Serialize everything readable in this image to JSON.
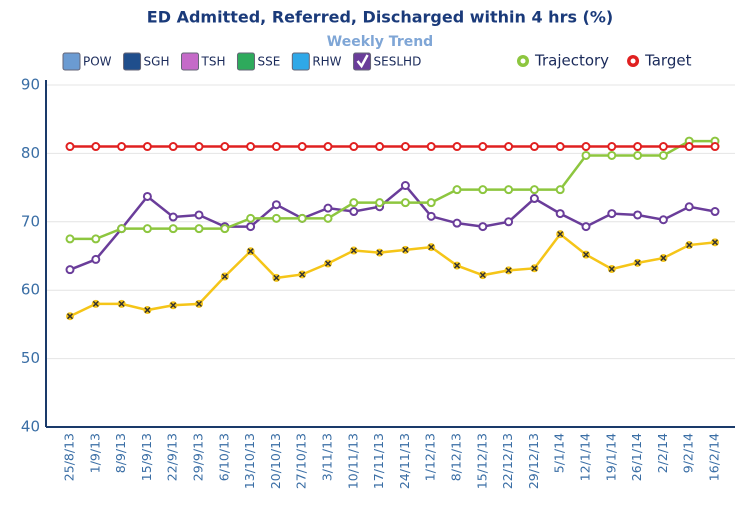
{
  "chart_data": {
    "type": "line",
    "title": "ED Admitted, Referred, Discharged within 4 hrs (%)",
    "subtitle": "Weekly Trend",
    "categories": [
      "25/8/13",
      "1/9/13",
      "8/9/13",
      "15/9/13",
      "22/9/13",
      "29/9/13",
      "6/10/13",
      "13/10/13",
      "20/10/13",
      "27/10/13",
      "3/11/13",
      "10/11/13",
      "17/11/13",
      "24/11/13",
      "1/12/13",
      "8/12/13",
      "15/12/13",
      "22/12/13",
      "29/12/13",
      "5/1/14",
      "12/1/14",
      "19/1/14",
      "26/1/14",
      "2/2/14",
      "9/2/14",
      "16/2/14"
    ],
    "legend_boxes": [
      {
        "name": "POW",
        "color": "#6b9bd2"
      },
      {
        "name": "SGH",
        "color": "#1f4e8c"
      },
      {
        "name": "TSH",
        "color": "#c56ac8"
      },
      {
        "name": "SSE",
        "color": "#2eaa5c"
      },
      {
        "name": "RHW",
        "color": "#2fa8e8"
      }
    ],
    "series": [
      {
        "name": "SESLHD",
        "color": "#6a3d9a",
        "marker": "circle",
        "legend": "box",
        "values": [
          63,
          64.5,
          69,
          73.7,
          70.7,
          71,
          69.3,
          69.3,
          72.5,
          70.5,
          72,
          71.5,
          72.2,
          75.3,
          70.8,
          69.8,
          69.3,
          70,
          73.4,
          71.2,
          69.3,
          71.2,
          71,
          70.3,
          72.2,
          71.5
        ]
      },
      {
        "name": "Trajectory",
        "color": "#8dc63f",
        "marker": "circle",
        "legend": "circle",
        "values": [
          67.5,
          67.5,
          69,
          69,
          69,
          69,
          69,
          70.5,
          70.5,
          70.5,
          70.5,
          72.8,
          72.8,
          72.8,
          72.8,
          74.7,
          74.7,
          74.7,
          74.7,
          74.7,
          79.7,
          79.7,
          79.7,
          79.7,
          81.8,
          81.8
        ]
      },
      {
        "name": "Target",
        "color": "#e02020",
        "marker": "circle",
        "legend": "circle",
        "values": [
          81,
          81,
          81,
          81,
          81,
          81,
          81,
          81,
          81,
          81,
          81,
          81,
          81,
          81,
          81,
          81,
          81,
          81,
          81,
          81,
          81,
          81,
          81,
          81,
          81,
          81
        ]
      },
      {
        "color": "#f5c518",
        "marker": "cross",
        "values": [
          56.2,
          58,
          58,
          57.1,
          57.8,
          58,
          62,
          65.7,
          61.8,
          62.3,
          63.9,
          65.8,
          65.5,
          65.9,
          66.3,
          63.6,
          62.2,
          62.9,
          63.2,
          68.2,
          65.2,
          63.1,
          64,
          64.7,
          66.6,
          67
        ]
      }
    ],
    "ylim": [
      40,
      90
    ],
    "yticks": [
      40,
      50,
      60,
      70,
      80,
      90
    ],
    "grid": true
  }
}
